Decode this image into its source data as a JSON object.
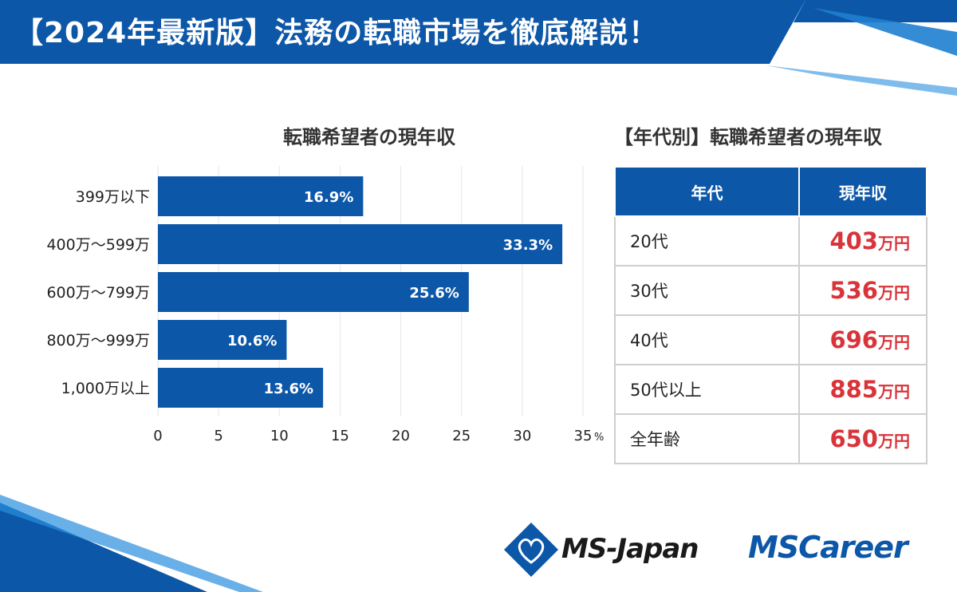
{
  "header": {
    "title": "【2024年最新版】法務の転職市場を徹底解説！"
  },
  "chart_data": {
    "type": "bar",
    "orientation": "horizontal",
    "title": "転職希望者の現年収",
    "categories": [
      "399万以下",
      "400万～599万",
      "600万～799万",
      "800万～999万",
      "1,000万以上"
    ],
    "values": [
      16.9,
      33.3,
      25.6,
      10.6,
      13.6
    ],
    "value_labels": [
      "16.9%",
      "33.3%",
      "25.6%",
      "10.6%",
      "13.6%"
    ],
    "x_ticks": [
      "0",
      "5",
      "10",
      "15",
      "20",
      "25",
      "30",
      "35"
    ],
    "x_unit": "%",
    "xlim": [
      0,
      35
    ],
    "grid": true,
    "bar_color": "#0d57a8"
  },
  "table": {
    "title": "【年代別】転職希望者の現年収",
    "headers": [
      "年代",
      "現年収"
    ],
    "unit": "万円",
    "rows": [
      {
        "age": "20代",
        "amount": "403",
        "unit": "万円"
      },
      {
        "age": "30代",
        "amount": "536",
        "unit": "万円"
      },
      {
        "age": "40代",
        "amount": "696",
        "unit": "万円"
      },
      {
        "age": "50代以上",
        "amount": "885",
        "unit": "万円"
      },
      {
        "age": "全年齢",
        "amount": "650",
        "unit": "万円"
      }
    ]
  },
  "logos": {
    "ms_japan": "MS-Japan",
    "ms_career": "MSCareer"
  },
  "colors": {
    "brand_blue": "#0d57a8",
    "accent_red": "#d9343a"
  }
}
